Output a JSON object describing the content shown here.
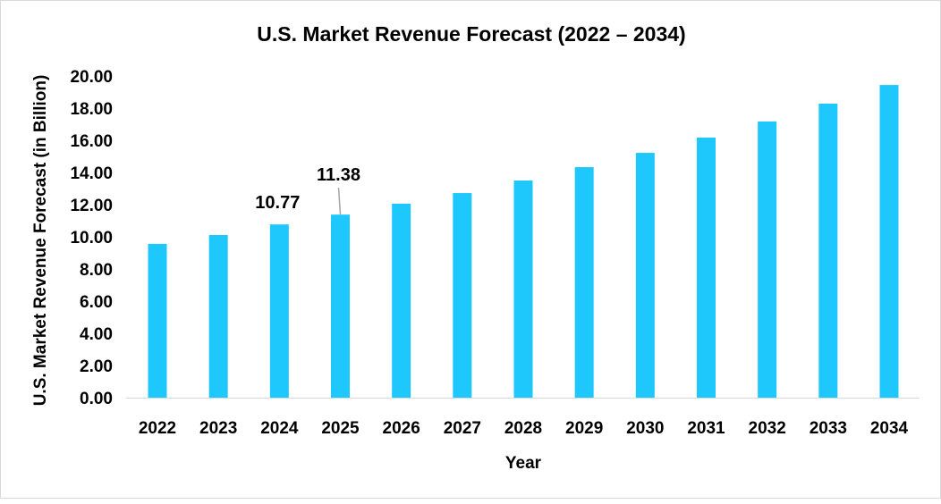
{
  "chart_data": {
    "type": "bar",
    "title": "U.S. Market Revenue Forecast (2022 – 2034)",
    "xlabel": "Year",
    "ylabel": "U.S. Market Revenue Forecast (in Billion)",
    "categories": [
      "2022",
      "2023",
      "2024",
      "2025",
      "2026",
      "2027",
      "2028",
      "2029",
      "2030",
      "2031",
      "2032",
      "2033",
      "2034"
    ],
    "values": [
      9.56,
      10.11,
      10.77,
      11.38,
      12.06,
      12.72,
      13.5,
      14.33,
      15.22,
      16.17,
      17.17,
      18.28,
      19.44
    ],
    "data_labels": {
      "2024": "10.77",
      "2025": "11.38"
    },
    "ylim": [
      0,
      20
    ],
    "yticks": [
      "0.00",
      "2.00",
      "4.00",
      "6.00",
      "8.00",
      "10.00",
      "12.00",
      "14.00",
      "16.00",
      "18.00",
      "20.00"
    ],
    "grid": false,
    "legend": "none",
    "bar_color": "#1ec8fc"
  }
}
